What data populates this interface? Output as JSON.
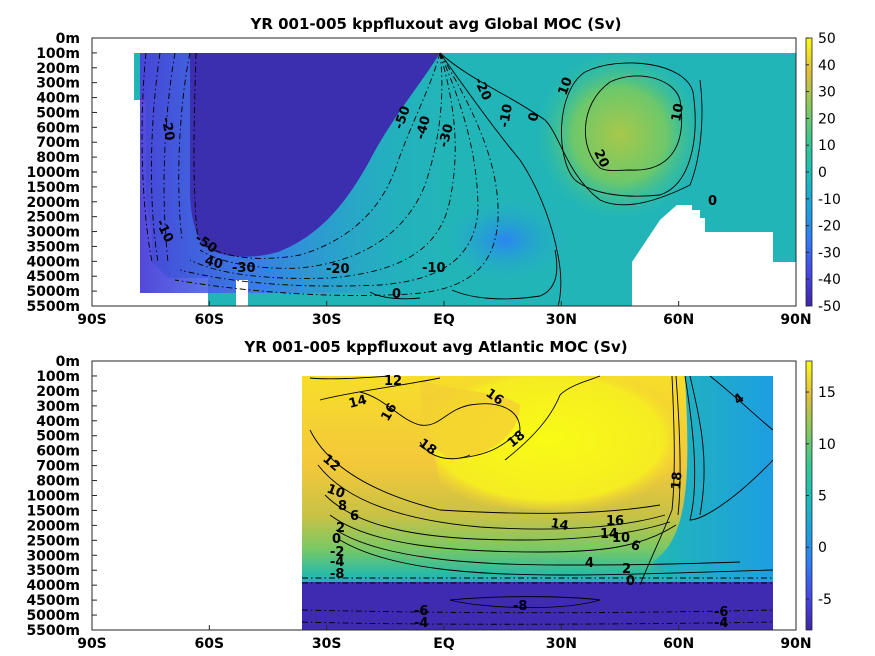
{
  "chart_data": [
    {
      "type": "heatmap",
      "title": "YR 001-005 kppfluxout avg  Global MOC (Sv)",
      "x_tick_labels": [
        "90S",
        "60S",
        "30S",
        "EQ",
        "30N",
        "60N",
        "90N"
      ],
      "x_ticks": [
        -90,
        -60,
        -30,
        0,
        30,
        60,
        90
      ],
      "xlim": [
        -90,
        90
      ],
      "y_tick_labels": [
        "0m",
        "100m",
        "200m",
        "300m",
        "400m",
        "500m",
        "600m",
        "700m",
        "800m",
        "1000m",
        "1500m",
        "2000m",
        "2500m",
        "3000m",
        "3500m",
        "4000m",
        "4500m",
        "5000m",
        "5500m"
      ],
      "colorbar": {
        "min": -50,
        "max": 50,
        "ticks": [
          50,
          40,
          30,
          20,
          10,
          0,
          -10,
          -20,
          -30,
          -40,
          -50
        ],
        "colormap": "parula"
      },
      "contour_labels": [
        "-20",
        "-10",
        "-50",
        "40",
        "-30",
        "-20",
        "-10",
        "0",
        "-50",
        "-40",
        "-30",
        "-20",
        "-10",
        "0",
        "10",
        "20",
        "10",
        "0"
      ]
    },
    {
      "type": "heatmap",
      "title": "YR 001-005 kppfluxout avg  Atlantic MOC (Sv)",
      "x_tick_labels": [
        "90S",
        "60S",
        "30S",
        "EQ",
        "30N",
        "60N",
        "90N"
      ],
      "x_ticks": [
        -90,
        -60,
        -30,
        0,
        30,
        60,
        90
      ],
      "xlim": [
        -90,
        90
      ],
      "y_tick_labels": [
        "0m",
        "100m",
        "200m",
        "300m",
        "400m",
        "500m",
        "600m",
        "700m",
        "800m",
        "1000m",
        "1500m",
        "2000m",
        "2500m",
        "3000m",
        "3500m",
        "4000m",
        "4500m",
        "5000m",
        "5500m"
      ],
      "colorbar": {
        "min": -8,
        "max": 18,
        "ticks": [
          15,
          10,
          5,
          0,
          -5
        ],
        "colormap": "parula"
      },
      "contour_labels": [
        "12",
        "14",
        "16",
        "16",
        "18",
        "18",
        "12",
        "10",
        "8",
        "6",
        "2",
        "0",
        "-2",
        "-4",
        "-8",
        "14",
        "16",
        "14",
        "10",
        "6",
        "4",
        "2",
        "0",
        "18",
        "4",
        "-6",
        "-8",
        "-6",
        "-4",
        "-4"
      ]
    }
  ]
}
